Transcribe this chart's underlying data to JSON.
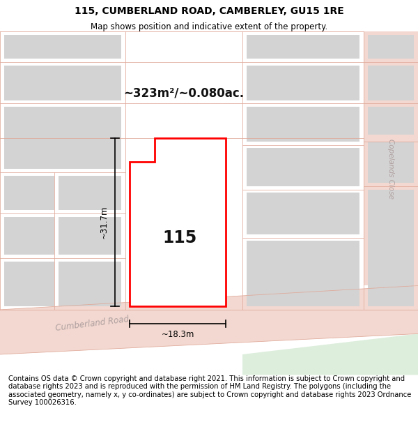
{
  "title": "115, CUMBERLAND ROAD, CAMBERLEY, GU15 1RE",
  "subtitle": "Map shows position and indicative extent of the property.",
  "footer": "Contains OS data © Crown copyright and database right 2021. This information is subject to Crown copyright and database rights 2023 and is reproduced with the permission of HM Land Registry. The polygons (including the associated geometry, namely x, y co-ordinates) are subject to Crown copyright and database rights 2023 Ordnance Survey 100026316.",
  "bg_color": "#ffffff",
  "area_label": "~323m²/~0.080ac.",
  "width_label": "~18.3m",
  "height_label": "~31.7m",
  "road_name": "Cumberland Road",
  "street_name2": "Copelands Close",
  "label_115": "115",
  "title_fontsize": 10,
  "subtitle_fontsize": 8.5,
  "footer_fontsize": 7.2,
  "map_bg": "#f5eeee",
  "road_fill": "#f2d8d0",
  "road_line": "#e0a898",
  "green_fill": "#ddeedd",
  "block_fill": "#d3d3d3",
  "plot_fill": "#ffffff",
  "plot_edge": "#ff0000",
  "dim_color": "#000000",
  "text_color": "#111111",
  "road_label_color": "#b0a0a0",
  "copeland_label_color": "#b0a0a0"
}
